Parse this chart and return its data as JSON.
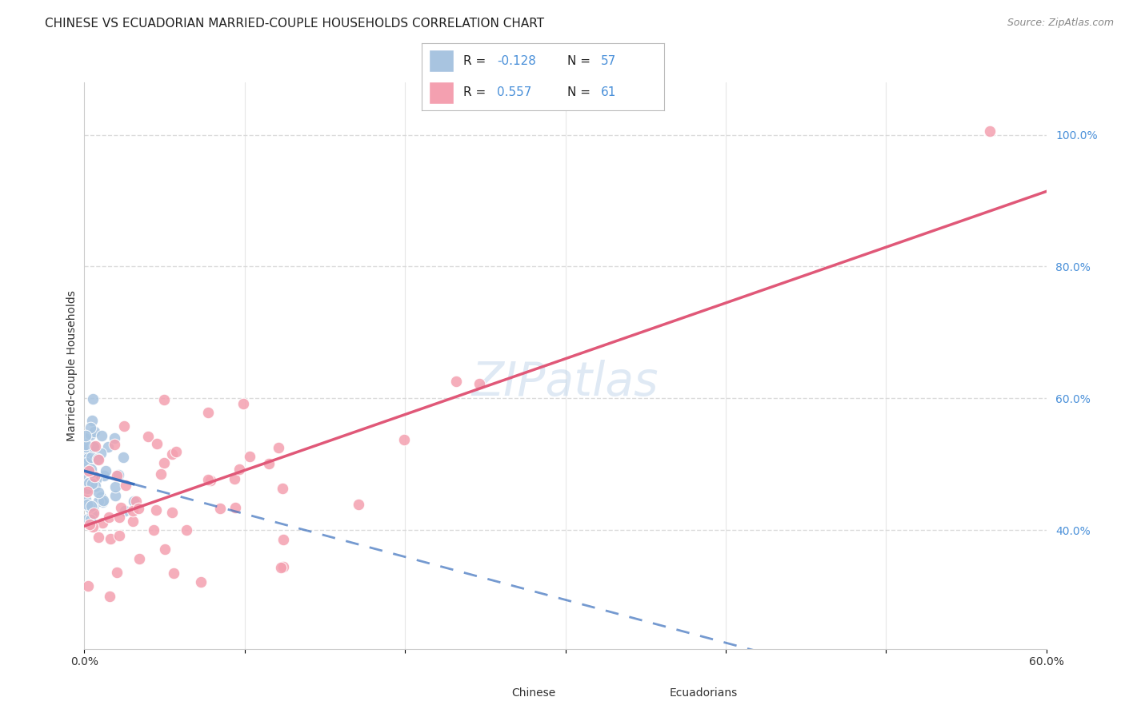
{
  "title": "CHINESE VS ECUADORIAN MARRIED-COUPLE HOUSEHOLDS CORRELATION CHART",
  "source": "Source: ZipAtlas.com",
  "ylabel": "Married-couple Households",
  "xlim": [
    0.0,
    0.6
  ],
  "ylim": [
    0.22,
    1.08
  ],
  "xtick_positions": [
    0.0,
    0.1,
    0.2,
    0.3,
    0.4,
    0.5,
    0.6
  ],
  "xticklabels": [
    "0.0%",
    "",
    "",
    "",
    "",
    "",
    "60.0%"
  ],
  "yticks_right": [
    0.4,
    0.6,
    0.8,
    1.0
  ],
  "ytickslabels_right": [
    "40.0%",
    "60.0%",
    "80.0%",
    "100.0%"
  ],
  "background_color": "#ffffff",
  "grid_color": "#d8d8d8",
  "watermark": "ZIPatlas",
  "legend_R_chinese": "-0.128",
  "legend_N_chinese": "57",
  "legend_R_ecuadorian": "0.557",
  "legend_N_ecuadorian": "61",
  "chinese_color": "#a8c4e0",
  "ecuadorian_color": "#f4a0b0",
  "chinese_line_color": "#3a6fbd",
  "ecuadorian_line_color": "#e05878",
  "title_fontsize": 11,
  "axis_label_fontsize": 10,
  "tick_fontsize": 10,
  "legend_fontsize": 11,
  "source_fontsize": 9,
  "blue_label_color": "#4a90d9",
  "text_color": "#333333"
}
